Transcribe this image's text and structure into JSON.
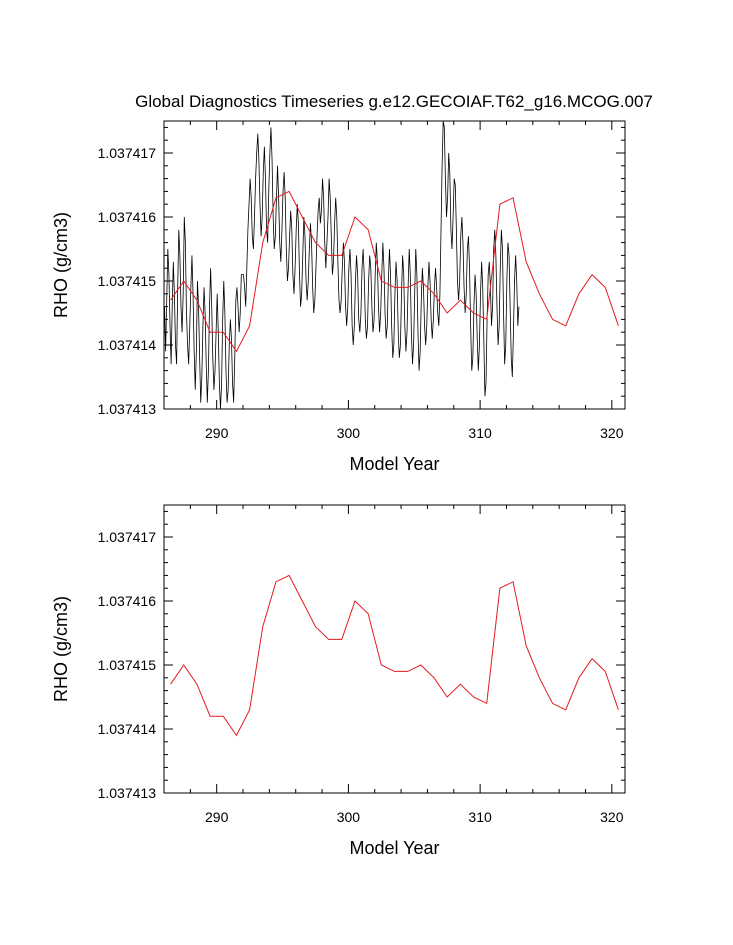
{
  "title": "Global Diagnostics Timeseries g.e12.GECOIAF.T62_g16.MCOG.007",
  "colors": {
    "monthly": "#000000",
    "annual": "#e41a1c",
    "axis": "#000000",
    "background": "#ffffff"
  },
  "chart_data": [
    {
      "type": "line",
      "xlabel": "Model Year",
      "ylabel": "RHO (g/cm3)",
      "xlim": [
        286,
        321
      ],
      "ylim": [
        1.037413,
        1.0374175
      ],
      "xticks": [
        "290",
        "300",
        "310",
        "320"
      ],
      "yticks": [
        "1.037413",
        "1.037414",
        "1.037415",
        "1.037416",
        "1.037417"
      ],
      "grid": false,
      "series": [
        {
          "kind": "monthly",
          "x_start": 286.04,
          "x_step": 0.0833,
          "values": [
            1.0374146,
            1.0374139,
            1.0374147,
            1.0374155,
            1.0374151,
            1.0374143,
            1.0374137,
            1.0374146,
            1.0374153,
            1.0374148,
            1.037414,
            1.0374137,
            1.0374149,
            1.0374158,
            1.0374154,
            1.0374146,
            1.0374142,
            1.0374148,
            1.037416,
            1.0374156,
            1.0374145,
            1.037414,
            1.0374137,
            1.0374143,
            1.0374149,
            1.0374154,
            1.0374148,
            1.0374139,
            1.0374133,
            1.0374139,
            1.037415,
            1.0374146,
            1.0374138,
            1.0374131,
            1.0374135,
            1.0374143,
            1.0374149,
            1.0374145,
            1.0374137,
            1.0374131,
            1.0374136,
            1.0374146,
            1.0374152,
            1.0374146,
            1.0374138,
            1.0374133,
            1.0374136,
            1.0374142,
            1.0374148,
            1.0374142,
            1.0374134,
            1.037413,
            1.0374134,
            1.0374144,
            1.037415,
            1.0374145,
            1.0374136,
            1.0374131,
            1.0374133,
            1.037414,
            1.0374144,
            1.0374141,
            1.0374134,
            1.0374131,
            1.0374138,
            1.0374147,
            1.0374149,
            1.0374146,
            1.0374142,
            1.0374145,
            1.0374151,
            1.0374151,
            1.0374151,
            1.0374149,
            1.0374146,
            1.0374152,
            1.0374158,
            1.0374162,
            1.0374166,
            1.0374163,
            1.0374157,
            1.0374155,
            1.037416,
            1.0374166,
            1.037417,
            1.0374173,
            1.0374169,
            1.0374162,
            1.0374157,
            1.037416,
            1.0374167,
            1.0374171,
            1.0374166,
            1.0374158,
            1.0374156,
            1.0374164,
            1.037417,
            1.0374174,
            1.0374169,
            1.037416,
            1.0374155,
            1.0374157,
            1.0374163,
            1.0374168,
            1.0374163,
            1.0374156,
            1.0374153,
            1.0374158,
            1.0374164,
            1.0374167,
            1.0374163,
            1.0374155,
            1.037415,
            1.0374152,
            1.0374157,
            1.0374161,
            1.0374158,
            1.0374151,
            1.0374148,
            1.0374152,
            1.0374158,
            1.0374162,
            1.0374159,
            1.0374151,
            1.0374146,
            1.0374148,
            1.0374154,
            1.037416,
            1.0374157,
            1.037415,
            1.0374147,
            1.037415,
            1.0374155,
            1.0374159,
            1.0374156,
            1.0374149,
            1.0374145,
            1.0374147,
            1.0374152,
            1.0374157,
            1.0374161,
            1.0374163,
            1.0374159,
            1.0374161,
            1.0374166,
            1.0374163,
            1.0374156,
            1.0374152,
            1.0374156,
            1.037416,
            1.0374166,
            1.0374163,
            1.0374157,
            1.0374151,
            1.0374153,
            1.0374159,
            1.0374163,
            1.037416,
            1.0374153,
            1.0374147,
            1.0374145,
            1.0374147,
            1.0374152,
            1.0374156,
            1.0374153,
            1.0374146,
            1.0374143,
            1.0374146,
            1.0374152,
            1.0374155,
            1.0374151,
            1.0374143,
            1.037414,
            1.0374143,
            1.037415,
            1.0374154,
            1.0374151,
            1.0374144,
            1.0374142,
            1.0374145,
            1.0374152,
            1.0374155,
            1.0374151,
            1.0374144,
            1.0374141,
            1.0374143,
            1.037415,
            1.0374154,
            1.0374152,
            1.0374146,
            1.0374142,
            1.0374144,
            1.0374151,
            1.0374156,
            1.0374153,
            1.0374146,
            1.0374142,
            1.0374145,
            1.0374151,
            1.0374156,
            1.0374152,
            1.0374145,
            1.0374141,
            1.0374143,
            1.037415,
            1.0374155,
            1.0374151,
            1.0374143,
            1.0374138,
            1.037414,
            1.0374148,
            1.0374153,
            1.037415,
            1.0374142,
            1.0374138,
            1.037414,
            1.0374148,
            1.0374154,
            1.0374151,
            1.0374143,
            1.0374139,
            1.0374142,
            1.0374149,
            1.0374155,
            1.0374151,
            1.0374142,
            1.0374137,
            1.037414,
            1.0374148,
            1.0374155,
            1.0374151,
            1.0374142,
            1.0374136,
            1.0374139,
            1.0374147,
            1.0374152,
            1.0374149,
            1.0374143,
            1.037414,
            1.0374143,
            1.0374149,
            1.0374153,
            1.037415,
            1.0374144,
            1.0374141,
            1.0374144,
            1.0374149,
            1.0374152,
            1.0374149,
            1.0374145,
            1.0374143,
            1.0374148,
            1.0374158,
            1.0374168,
            1.0374175,
            1.0374174,
            1.0374166,
            1.037416,
            1.0374163,
            1.037417,
            1.0374167,
            1.0374158,
            1.0374155,
            1.037416,
            1.0374166,
            1.0374165,
            1.0374158,
            1.037415,
            1.0374147,
            1.037415,
            1.0374157,
            1.037416,
            1.0374156,
            1.0374149,
            1.0374145,
            1.0374148,
            1.0374155,
            1.0374157,
            1.0374152,
            1.0374143,
            1.0374136,
            1.0374138,
            1.0374146,
            1.0374151,
            1.0374148,
            1.0374141,
            1.0374136,
            1.037414,
            1.0374148,
            1.0374153,
            1.0374149,
            1.0374141,
            1.0374132,
            1.0374134,
            1.0374144,
            1.0374151,
            1.0374153,
            1.0374149,
            1.0374143,
            1.0374146,
            1.0374155,
            1.0374158,
            1.0374154,
            1.0374146,
            1.037414,
            1.0374143,
            1.0374152,
            1.0374158,
            1.0374155,
            1.0374145,
            1.0374137,
            1.037414,
            1.037415,
            1.0374156,
            1.0374154,
            1.0374146,
            1.0374138,
            1.0374135,
            1.0374142,
            1.037415,
            1.0374154,
            1.037415,
            1.0374143,
            1.0374146
          ]
        },
        {
          "kind": "annual",
          "x": [
            286.5,
            287.5,
            288.5,
            289.5,
            290.5,
            291.5,
            292.5,
            293.5,
            294.5,
            295.5,
            296.5,
            297.5,
            298.5,
            299.5,
            300.5,
            301.5,
            302.5,
            303.5,
            304.5,
            305.5,
            306.5,
            307.5,
            308.5,
            309.5,
            310.5,
            311.5,
            312.5,
            313.5,
            314.5,
            315.5,
            316.5,
            317.5,
            318.5,
            319.5,
            320.5
          ],
          "values": [
            1.0374147,
            1.037415,
            1.0374147,
            1.0374142,
            1.0374142,
            1.0374139,
            1.0374143,
            1.0374156,
            1.0374163,
            1.0374164,
            1.037416,
            1.0374156,
            1.0374154,
            1.0374154,
            1.037416,
            1.0374158,
            1.037415,
            1.0374149,
            1.0374149,
            1.037415,
            1.0374148,
            1.0374145,
            1.0374147,
            1.0374145,
            1.0374144,
            1.0374162,
            1.0374163,
            1.0374153,
            1.0374148,
            1.0374144,
            1.0374143,
            1.0374148,
            1.0374151,
            1.0374149,
            1.0374143
          ]
        }
      ]
    },
    {
      "type": "line",
      "xlabel": "Model Year",
      "ylabel": "RHO (g/cm3)",
      "xlim": [
        286,
        321
      ],
      "ylim": [
        1.037413,
        1.0374175
      ],
      "xticks": [
        "290",
        "300",
        "310",
        "320"
      ],
      "yticks": [
        "1.037413",
        "1.037414",
        "1.037415",
        "1.037416",
        "1.037417"
      ],
      "grid": false,
      "series": [
        {
          "kind": "annual",
          "x": [
            286.5,
            287.5,
            288.5,
            289.5,
            290.5,
            291.5,
            292.5,
            293.5,
            294.5,
            295.5,
            296.5,
            297.5,
            298.5,
            299.5,
            300.5,
            301.5,
            302.5,
            303.5,
            304.5,
            305.5,
            306.5,
            307.5,
            308.5,
            309.5,
            310.5,
            311.5,
            312.5,
            313.5,
            314.5,
            315.5,
            316.5,
            317.5,
            318.5,
            319.5,
            320.5
          ],
          "values": [
            1.0374147,
            1.037415,
            1.0374147,
            1.0374142,
            1.0374142,
            1.0374139,
            1.0374143,
            1.0374156,
            1.0374163,
            1.0374164,
            1.037416,
            1.0374156,
            1.0374154,
            1.0374154,
            1.037416,
            1.0374158,
            1.037415,
            1.0374149,
            1.0374149,
            1.037415,
            1.0374148,
            1.0374145,
            1.0374147,
            1.0374145,
            1.0374144,
            1.0374162,
            1.0374163,
            1.0374153,
            1.0374148,
            1.0374144,
            1.0374143,
            1.0374148,
            1.0374151,
            1.0374149,
            1.0374143
          ]
        }
      ]
    }
  ]
}
